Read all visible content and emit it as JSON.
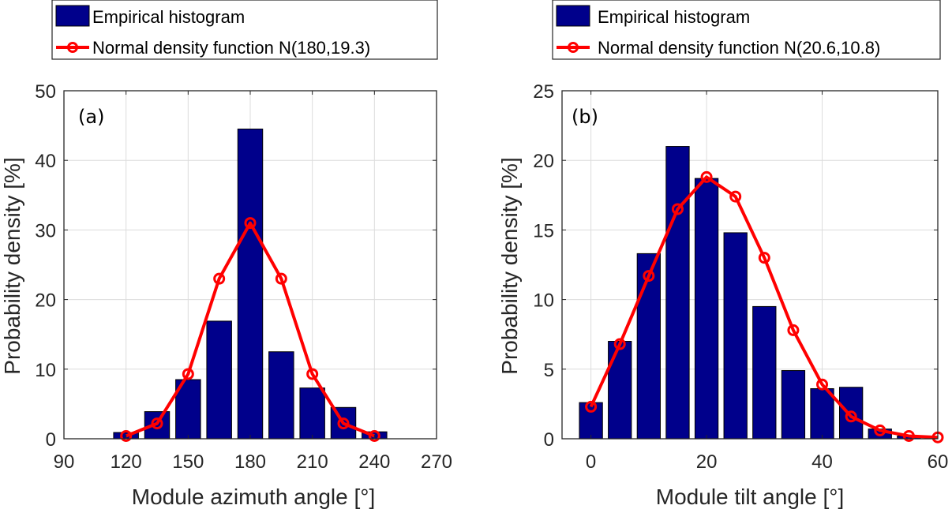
{
  "chart_data": [
    {
      "type": "bar",
      "panel_label": "(a)",
      "title": "",
      "xlabel": "Module azimuth angle [°]",
      "ylabel": "Probability density [%]",
      "xlim": [
        90,
        270
      ],
      "ylim": [
        0,
        50
      ],
      "xticks": [
        90,
        120,
        150,
        180,
        210,
        240,
        270
      ],
      "yticks": [
        0,
        10,
        20,
        30,
        40,
        50
      ],
      "grid": true,
      "legend_position": "above-plot",
      "bin_width": 15,
      "bar_fill": "#00008B",
      "line_color": "#FF0000",
      "series": [
        {
          "name": "Empirical histogram",
          "kind": "bar",
          "x": [
            120,
            135,
            150,
            165,
            180,
            195,
            210,
            225,
            240
          ],
          "values": [
            0.9,
            3.9,
            8.5,
            16.9,
            44.5,
            12.5,
            7.3,
            4.5,
            1.0
          ]
        },
        {
          "name": "Normal density function N(180,19.3)",
          "kind": "line",
          "x": [
            120,
            135,
            150,
            165,
            180,
            195,
            210,
            225,
            240
          ],
          "values": [
            0.4,
            2.2,
            9.3,
            23.0,
            31.0,
            23.0,
            9.3,
            2.2,
            0.4
          ]
        }
      ]
    },
    {
      "type": "bar",
      "panel_label": "(b)",
      "title": "",
      "xlabel": "Module tilt angle [°]",
      "ylabel": "Probability density [%]",
      "xlim": [
        -5,
        60
      ],
      "ylim": [
        0,
        25
      ],
      "xticks": [
        0,
        20,
        40,
        60
      ],
      "yticks": [
        0,
        5,
        10,
        15,
        20,
        25
      ],
      "grid": true,
      "legend_position": "above-plot",
      "bin_width": 5,
      "bar_fill": "#00008B",
      "line_color": "#FF0000",
      "series": [
        {
          "name": "Empirical histogram",
          "kind": "bar",
          "x": [
            0,
            5,
            10,
            15,
            20,
            25,
            30,
            35,
            40,
            45,
            50,
            55
          ],
          "values": [
            2.6,
            7.0,
            13.3,
            21.0,
            18.7,
            14.8,
            9.5,
            4.9,
            3.6,
            3.7,
            0.7,
            0.2
          ]
        },
        {
          "name": "Normal density function N(20.6,10.8)",
          "kind": "line",
          "x": [
            0,
            5,
            10,
            15,
            20,
            25,
            30,
            35,
            40,
            45,
            50,
            55,
            60
          ],
          "values": [
            2.3,
            6.8,
            11.7,
            16.5,
            18.8,
            17.4,
            13.0,
            7.8,
            3.9,
            1.6,
            0.6,
            0.2,
            0.1
          ]
        }
      ]
    }
  ]
}
